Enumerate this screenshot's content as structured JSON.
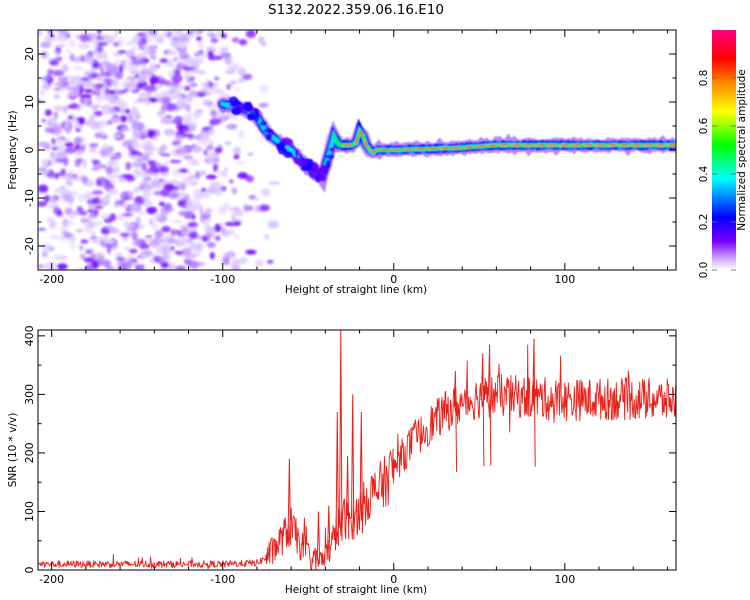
{
  "title": "S132.2022.359.06.16.E10",
  "chart_data": [
    {
      "type": "heatmap",
      "name": "spectrogram",
      "xlabel": "Height of straight line (km)",
      "ylabel": "Frequency (Hz)",
      "xlim": [
        -208,
        165
      ],
      "ylim": [
        -25,
        25
      ],
      "xticks": [
        "-200",
        "-100",
        "0",
        "100"
      ],
      "xtick_values": [
        -200,
        -100,
        0,
        100
      ],
      "yticks": [
        "20",
        "10",
        "0",
        "-10",
        "-20"
      ],
      "ytick_values": [
        20,
        10,
        0,
        -10,
        -20
      ],
      "noise_region_x": [
        -208,
        -80
      ],
      "signal_track": {
        "x": [
          -100,
          -90,
          -80,
          -75,
          -70,
          -65,
          -60,
          -55,
          -50,
          -45,
          -42,
          -38,
          -35,
          -32,
          -30,
          -25,
          -22,
          -20,
          -18,
          -16,
          -14,
          -12,
          -10,
          0,
          40,
          60,
          100,
          165
        ],
        "frequency": [
          9.5,
          9,
          7,
          4,
          2.5,
          1,
          0,
          -2,
          -3.5,
          -5,
          -5.5,
          -1,
          3,
          1,
          1,
          1,
          1.5,
          4,
          3,
          1,
          0,
          -0.5,
          0,
          0,
          0.5,
          1,
          1,
          1
        ]
      },
      "colorbar": {
        "label": "Normalized spectral amplitude",
        "range": [
          0,
          1
        ],
        "ticks": [
          "0.0",
          "0.2",
          "0.4",
          "0.6",
          "0.8"
        ],
        "tick_values": [
          0.0,
          0.2,
          0.4,
          0.6,
          0.8
        ],
        "colormap": [
          "#ffffff",
          "#7a00ff",
          "#0000ff",
          "#00ffff",
          "#00ff00",
          "#ffff00",
          "#ff8800",
          "#ff0000",
          "#ff0080"
        ]
      }
    },
    {
      "type": "line",
      "name": "snr",
      "xlabel": "Height of straight line (km)",
      "ylabel": "SNR (10 * v/v)",
      "xlim": [
        -208,
        165
      ],
      "ylim": [
        0,
        410
      ],
      "xticks": [
        "-200",
        "-100",
        "0",
        "100"
      ],
      "xtick_values": [
        -200,
        -100,
        0,
        100
      ],
      "yticks": [
        "0",
        "100",
        "200",
        "300",
        "400"
      ],
      "ytick_values": [
        0,
        100,
        200,
        300,
        400
      ],
      "line_color": "#e8211b",
      "trend": {
        "x": [
          -208,
          -100,
          -80,
          -75,
          -70,
          -65,
          -60,
          -55,
          -50,
          -45,
          -40,
          -35,
          -30,
          -25,
          -20,
          -15,
          -10,
          -5,
          0,
          10,
          20,
          30,
          40,
          50,
          60,
          80,
          100,
          120,
          140,
          165
        ],
        "y": [
          10,
          10,
          12,
          20,
          35,
          55,
          75,
          45,
          25,
          15,
          20,
          55,
          90,
          85,
          100,
          125,
          135,
          150,
          175,
          215,
          245,
          270,
          285,
          295,
          298,
          295,
          290,
          292,
          292,
          290
        ]
      },
      "spikes": {
        "x": [
          -61,
          -44,
          -38,
          -33,
          -31,
          -27,
          -24,
          -19,
          36,
          52,
          56,
          82
        ],
        "y": [
          190,
          100,
          110,
          270,
          410,
          195,
          300,
          270,
          340,
          370,
          385,
          395
        ]
      }
    }
  ]
}
